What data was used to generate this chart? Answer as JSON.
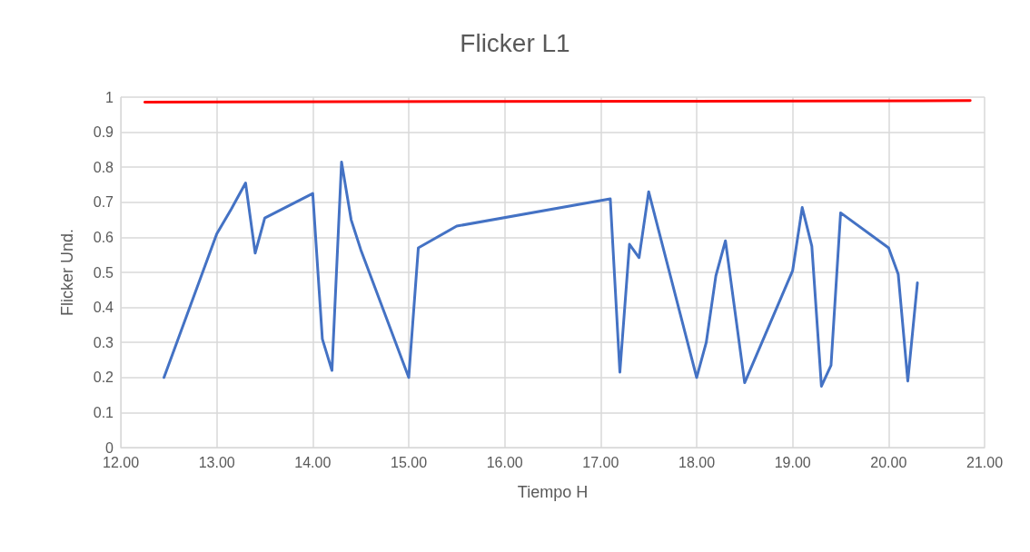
{
  "chart_data": {
    "type": "line",
    "title": "Flicker L1",
    "xlabel": "Tiempo H",
    "ylabel": "Flicker Und.",
    "x": [
      12.45,
      13.0,
      13.15,
      13.3,
      13.4,
      13.5,
      14.0,
      14.1,
      14.2,
      14.3,
      14.4,
      14.5,
      15.0,
      15.1,
      15.5,
      17.1,
      17.2,
      17.3,
      17.4,
      17.5,
      18.0,
      18.1,
      18.2,
      18.3,
      18.5,
      19.0,
      19.1,
      19.2,
      19.3,
      19.4,
      19.5,
      20.0,
      20.1,
      20.2,
      20.3
    ],
    "series": [
      {
        "color": "#4472c4",
        "values": [
          0.2,
          0.61,
          0.68,
          0.755,
          0.555,
          0.655,
          0.725,
          0.31,
          0.22,
          0.815,
          0.65,
          0.565,
          0.2,
          0.57,
          0.632,
          0.71,
          0.215,
          0.58,
          0.542,
          0.73,
          0.2,
          0.3,
          0.49,
          0.59,
          0.185,
          0.505,
          0.685,
          0.575,
          0.175,
          0.235,
          0.67,
          0.57,
          0.495,
          0.19,
          0.47
        ]
      },
      {
        "color": "#ff0000",
        "x": [
          12.25,
          20.85
        ],
        "values": [
          0.986,
          0.99
        ]
      }
    ],
    "xlim": [
      12,
      21
    ],
    "xticks": [
      {
        "value": 12,
        "label": "12.00"
      },
      {
        "value": 13,
        "label": "13.00"
      },
      {
        "value": 14,
        "label": "14.00"
      },
      {
        "value": 15,
        "label": "15.00"
      },
      {
        "value": 16,
        "label": "16.00"
      },
      {
        "value": 17,
        "label": "17.00"
      },
      {
        "value": 18,
        "label": "18.00"
      },
      {
        "value": 19,
        "label": "19.00"
      },
      {
        "value": 20,
        "label": "20.00"
      },
      {
        "value": 21,
        "label": "21.00"
      }
    ],
    "ylim": [
      0,
      1
    ],
    "yticks": [
      0,
      0.1,
      0.2,
      0.3,
      0.4,
      0.5,
      0.6,
      0.7,
      0.8,
      0.9,
      1
    ],
    "grid": true,
    "marker": "none",
    "line_style": "solid"
  }
}
